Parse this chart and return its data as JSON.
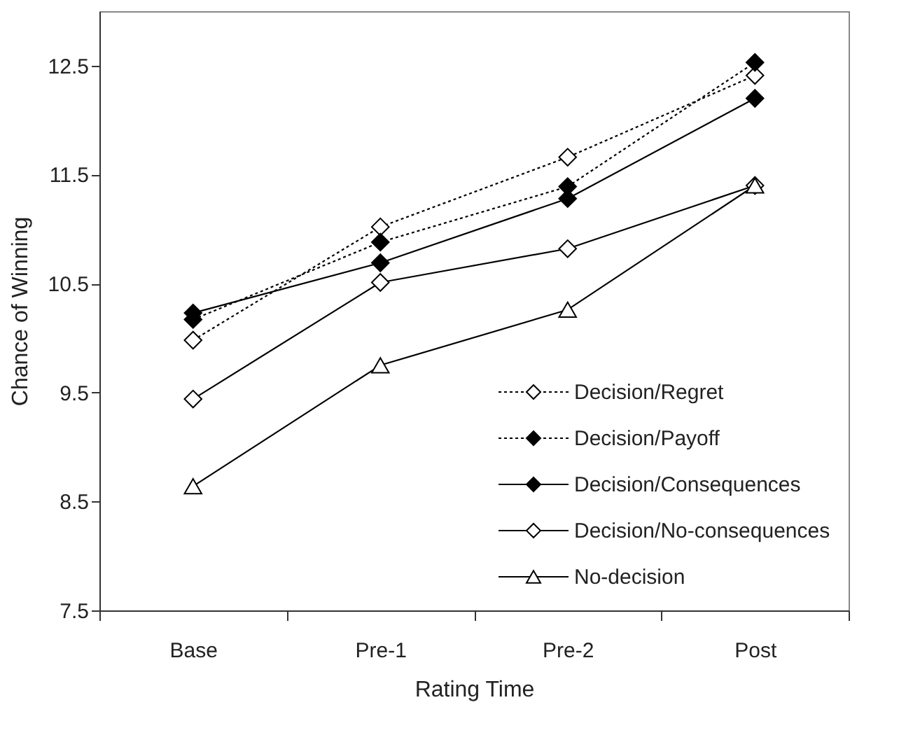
{
  "chart_data": {
    "type": "line",
    "xlabel": "Rating Time",
    "ylabel": "Chance of Winning",
    "categories": [
      "Base",
      "Pre-1",
      "Pre-2",
      "Post"
    ],
    "ylim": [
      7.5,
      13.0
    ],
    "yticks": [
      7.5,
      8.5,
      9.5,
      10.5,
      11.5,
      12.5
    ],
    "grid": false,
    "legend": "bottom right",
    "series": [
      {
        "name": "Decision/Regret",
        "color": "#ffffff",
        "marker": "diamond",
        "line_style": "dotted",
        "values": [
          9.98,
          11.02,
          11.66,
          12.41
        ]
      },
      {
        "name": "Decision/Payoff",
        "color": "#000000",
        "marker": "diamond",
        "line_style": "dotted",
        "values": [
          10.17,
          10.88,
          11.39,
          12.53
        ]
      },
      {
        "name": "Decision/Consequences",
        "color": "#000000",
        "marker": "diamond",
        "line_style": "solid",
        "values": [
          10.23,
          10.69,
          11.28,
          12.2
        ]
      },
      {
        "name": "Decision/No-consequences",
        "color": "#ffffff",
        "marker": "diamond",
        "line_style": "solid",
        "values": [
          9.44,
          10.51,
          10.82,
          11.4
        ]
      },
      {
        "name": "No-decision",
        "color": "#ffffff",
        "marker": "triangle",
        "line_style": "solid",
        "values": [
          8.64,
          9.75,
          10.26,
          11.4
        ]
      }
    ]
  }
}
